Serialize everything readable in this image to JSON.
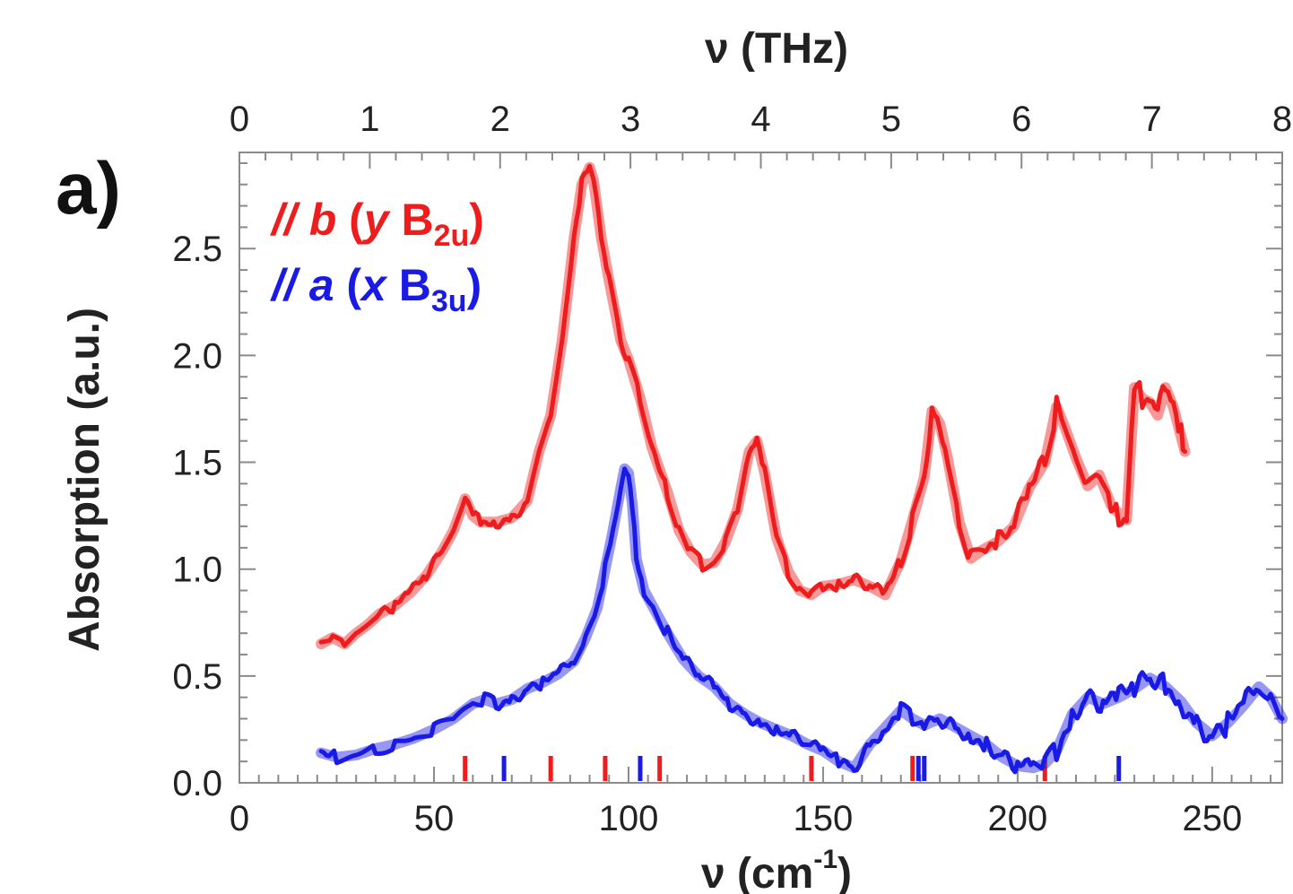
{
  "panel_label": "a)",
  "chart_data": {
    "type": "line",
    "title": "",
    "xlabel": "ν (cm",
    "xlabel_sup": "-1",
    "xlabel_close": ")",
    "x2label": "ν (THz)",
    "ylabel": "Absorption (a.u.)",
    "xlim": [
      0,
      268
    ],
    "ylim": [
      0,
      2.95
    ],
    "x2lim": [
      0,
      8
    ],
    "xticks": [
      0,
      50,
      100,
      150,
      200,
      250
    ],
    "x2ticks": [
      0,
      1,
      2,
      3,
      4,
      5,
      6,
      7,
      8
    ],
    "yticks": [
      "0.0",
      "0.5",
      "1.0",
      "1.5",
      "2.0",
      "2.5"
    ],
    "grid": false,
    "legend_position": "top-left",
    "legend": [
      {
        "prefix": "// ",
        "axis": "b",
        "open": " (",
        "coord": "y",
        "sym": " B",
        "sub": "2u",
        "close": ")",
        "color": "#ee1c1c"
      },
      {
        "prefix": "// ",
        "axis": "a",
        "open": " (",
        "coord": "x",
        "sym": " B",
        "sub": "3u",
        "close": ")",
        "color": "#1a1ae6"
      }
    ],
    "series": [
      {
        "key": "b",
        "color": "#ee1c1c",
        "x": [
          21,
          24,
          27,
          30,
          33,
          36,
          40,
          44,
          48,
          52,
          55,
          58,
          60,
          62,
          66,
          70,
          74,
          77,
          80,
          83,
          86,
          88,
          90,
          91,
          93,
          95,
          98,
          100,
          103,
          106,
          110,
          113,
          116,
          119,
          122,
          125,
          128,
          131,
          133,
          135,
          138,
          141,
          144,
          147,
          150,
          154,
          158,
          162,
          166,
          170,
          173,
          176,
          178,
          180,
          182,
          185,
          188,
          191,
          195,
          199,
          203,
          207,
          210,
          212,
          215,
          218,
          221,
          224,
          226,
          228,
          230,
          232,
          234,
          236,
          238,
          240,
          242,
          243
        ],
        "y": [
          0.65,
          0.68,
          0.65,
          0.7,
          0.74,
          0.79,
          0.83,
          0.89,
          0.97,
          1.08,
          1.18,
          1.33,
          1.25,
          1.22,
          1.22,
          1.24,
          1.32,
          1.55,
          1.72,
          2.08,
          2.55,
          2.8,
          2.88,
          2.82,
          2.55,
          2.35,
          2.07,
          1.98,
          1.8,
          1.57,
          1.36,
          1.18,
          1.08,
          1.02,
          1.03,
          1.13,
          1.28,
          1.55,
          1.6,
          1.45,
          1.15,
          0.99,
          0.9,
          0.88,
          0.92,
          0.93,
          0.95,
          0.92,
          0.88,
          1.04,
          1.23,
          1.43,
          1.74,
          1.68,
          1.52,
          1.22,
          1.05,
          1.09,
          1.13,
          1.2,
          1.38,
          1.5,
          1.76,
          1.67,
          1.52,
          1.39,
          1.44,
          1.3,
          1.26,
          1.23,
          1.85,
          1.8,
          1.78,
          1.72,
          1.85,
          1.76,
          1.62,
          1.55
        ]
      },
      {
        "key": "a",
        "color": "#1a1ae6",
        "x": [
          21,
          25,
          30,
          35,
          40,
          45,
          50,
          55,
          60,
          63,
          66,
          70,
          74,
          78,
          82,
          86,
          89,
          92,
          94,
          96,
          98,
          99,
          100,
          101,
          102,
          104,
          107,
          110,
          114,
          118,
          122,
          126,
          130,
          134,
          138,
          142,
          146,
          150,
          154,
          158,
          162,
          166,
          170,
          173,
          176,
          180,
          184,
          188,
          192,
          196,
          200,
          204,
          207,
          210,
          214,
          218,
          222,
          226,
          230,
          234,
          238,
          242,
          246,
          250,
          254,
          258,
          262,
          265,
          268
        ],
        "y": [
          0.14,
          0.12,
          0.13,
          0.16,
          0.18,
          0.21,
          0.25,
          0.3,
          0.37,
          0.39,
          0.37,
          0.39,
          0.44,
          0.47,
          0.51,
          0.57,
          0.68,
          0.82,
          1.0,
          1.18,
          1.38,
          1.47,
          1.45,
          1.3,
          1.05,
          0.9,
          0.8,
          0.7,
          0.58,
          0.5,
          0.45,
          0.37,
          0.32,
          0.28,
          0.25,
          0.22,
          0.18,
          0.15,
          0.1,
          0.07,
          0.18,
          0.26,
          0.34,
          0.3,
          0.27,
          0.3,
          0.26,
          0.22,
          0.18,
          0.12,
          0.08,
          0.07,
          0.09,
          0.15,
          0.32,
          0.4,
          0.37,
          0.4,
          0.44,
          0.49,
          0.45,
          0.38,
          0.28,
          0.22,
          0.28,
          0.36,
          0.45,
          0.4,
          0.3
        ]
      }
    ],
    "mode_markers": [
      {
        "x": 58,
        "color": "#ee1c1c"
      },
      {
        "x": 68,
        "color": "#1a1ae6"
      },
      {
        "x": 80,
        "color": "#ee1c1c"
      },
      {
        "x": 94,
        "color": "#ee1c1c"
      },
      {
        "x": 103,
        "color": "#1a1ae6"
      },
      {
        "x": 108,
        "color": "#ee1c1c"
      },
      {
        "x": 147,
        "color": "#ee1c1c"
      },
      {
        "x": 173,
        "color": "#ee1c1c"
      },
      {
        "x": 174.5,
        "color": "#1a1ae6"
      },
      {
        "x": 176,
        "color": "#1a1ae6"
      },
      {
        "x": 207,
        "color": "#ee1c1c"
      },
      {
        "x": 226,
        "color": "#1a1ae6"
      }
    ]
  }
}
